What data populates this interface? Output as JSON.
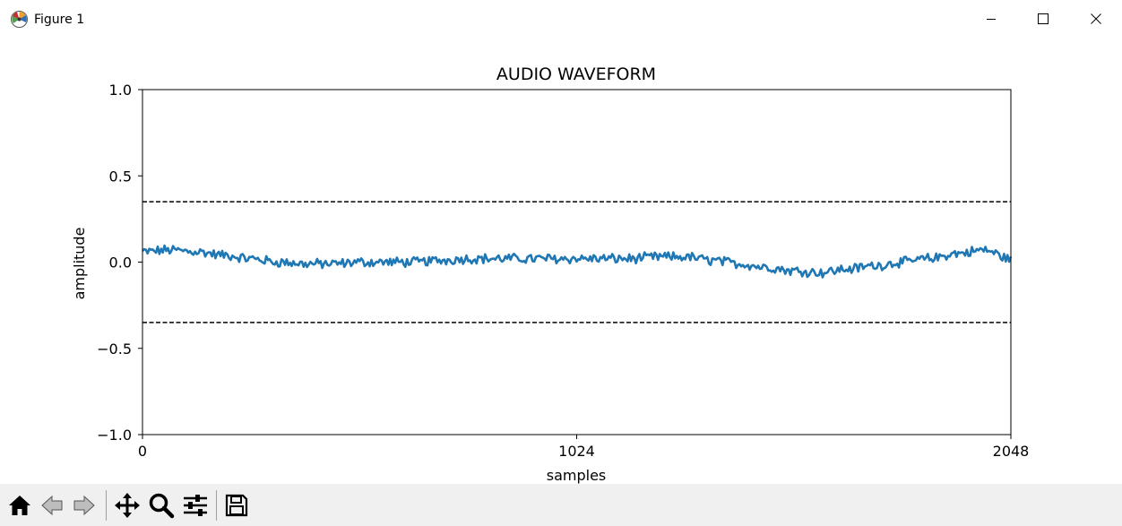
{
  "window": {
    "title": "Figure 1",
    "icons": {
      "app": "matplotlib-icon",
      "minimize": "minimize-icon",
      "maximize": "maximize-icon",
      "close": "close-icon"
    }
  },
  "toolbar": {
    "buttons": [
      {
        "name": "home",
        "icon": "home-icon"
      },
      {
        "name": "back",
        "icon": "back-arrow-icon"
      },
      {
        "name": "forward",
        "icon": "forward-arrow-icon"
      },
      {
        "name": "pan",
        "icon": "move-icon"
      },
      {
        "name": "zoom",
        "icon": "magnifier-icon"
      },
      {
        "name": "configure-subplots",
        "icon": "sliders-icon"
      },
      {
        "name": "save",
        "icon": "floppy-disk-icon"
      }
    ]
  },
  "chart_data": {
    "type": "line",
    "title": "AUDIO WAVEFORM",
    "xlabel": "samples",
    "ylabel": "amplitude",
    "xlim": [
      0,
      2048
    ],
    "ylim": [
      -1.0,
      1.0
    ],
    "xticks": [
      0,
      1024,
      2048
    ],
    "xtick_labels": [
      "0",
      "1024",
      "2048"
    ],
    "yticks": [
      1.0,
      0.5,
      0.0,
      -0.5,
      -1.0
    ],
    "ytick_labels": [
      "1.0",
      "0.5",
      "0.0",
      "−0.5",
      "−1.0"
    ],
    "grid": false,
    "line_color": "#1f77b4",
    "reference_lines": [
      {
        "y": 0.35,
        "style": "dashed",
        "color": "#000000"
      },
      {
        "y": -0.35,
        "style": "dashed",
        "color": "#000000"
      }
    ],
    "series": [
      {
        "x": [
          0,
          64,
          128,
          192,
          256,
          320,
          384,
          448,
          512,
          576,
          640,
          704,
          768,
          832,
          896,
          960,
          1024,
          1088,
          1152,
          1216,
          1280,
          1344,
          1408,
          1472,
          1536,
          1600,
          1664,
          1728,
          1792,
          1856,
          1920,
          1984,
          2048
        ],
        "values": [
          0.06,
          0.07,
          0.06,
          0.04,
          0.02,
          0.0,
          -0.01,
          -0.01,
          0.0,
          0.0,
          0.0,
          0.01,
          0.02,
          0.02,
          0.02,
          0.02,
          0.02,
          0.02,
          0.02,
          0.03,
          0.03,
          0.01,
          -0.01,
          -0.03,
          -0.05,
          -0.06,
          -0.04,
          -0.02,
          0.0,
          0.02,
          0.05,
          0.07,
          0.02
        ],
        "noise_amplitude": 0.025
      }
    ]
  }
}
